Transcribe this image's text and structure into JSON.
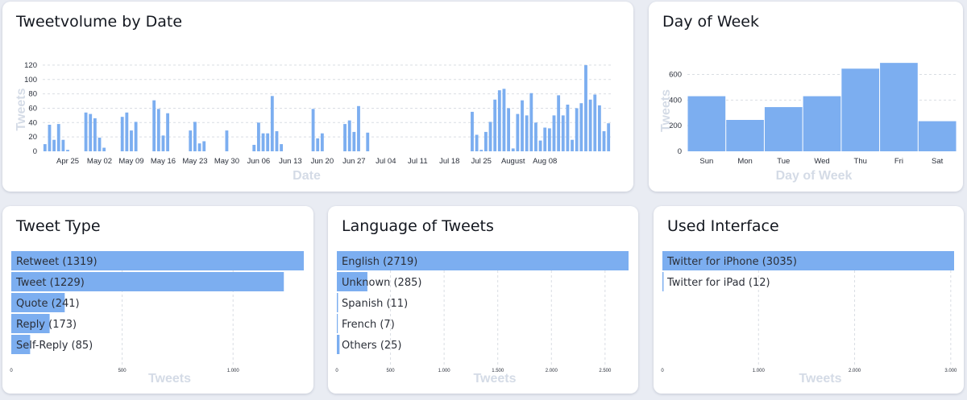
{
  "cards": {
    "date": {
      "title": "Tweetvolume by Date"
    },
    "dow": {
      "title": "Day of Week"
    },
    "type": {
      "title": "Tweet Type"
    },
    "lang": {
      "title": "Language of Tweets"
    },
    "iface": {
      "title": "Used Interface"
    }
  },
  "colors": {
    "bar": "#7caef0",
    "grid": "#d9dde3",
    "axis_title": "#d4dbe6"
  },
  "chart_data": [
    {
      "id": "date",
      "type": "bar",
      "title": "Tweetvolume by Date",
      "xlabel": "Date",
      "ylabel": "Tweets",
      "ylim": [
        0,
        130
      ],
      "yticks": [
        0,
        20,
        40,
        60,
        80,
        100,
        120
      ],
      "grid": true,
      "start": "Apr 20",
      "xtick_labels": [
        {
          "label": "Apr 25",
          "day": 5
        },
        {
          "label": "May 02",
          "day": 12
        },
        {
          "label": "May 09",
          "day": 19
        },
        {
          "label": "May 16",
          "day": 26
        },
        {
          "label": "May 23",
          "day": 33
        },
        {
          "label": "May 30",
          "day": 40
        },
        {
          "label": "Jun 06",
          "day": 47
        },
        {
          "label": "Jun 13",
          "day": 54
        },
        {
          "label": "Jun 20",
          "day": 61
        },
        {
          "label": "Jun 27",
          "day": 68
        },
        {
          "label": "Jul 04",
          "day": 75
        },
        {
          "label": "Jul 11",
          "day": 82
        },
        {
          "label": "Jul 18",
          "day": 89
        },
        {
          "label": "Jul 25",
          "day": 96
        },
        {
          "label": "August",
          "day": 103
        },
        {
          "label": "Aug 08",
          "day": 110
        }
      ],
      "values": [
        10,
        37,
        16,
        38,
        16,
        2,
        0,
        0,
        0,
        54,
        52,
        46,
        19,
        5,
        0,
        0,
        0,
        48,
        54,
        29,
        41,
        0,
        0,
        0,
        71,
        59,
        22,
        53,
        0,
        0,
        0,
        0,
        29,
        41,
        11,
        14,
        0,
        0,
        0,
        0,
        29,
        0,
        0,
        0,
        0,
        0,
        9,
        40,
        25,
        25,
        77,
        28,
        10,
        0,
        0,
        0,
        0,
        0,
        0,
        59,
        18,
        25,
        0,
        0,
        0,
        0,
        38,
        43,
        27,
        63,
        0,
        26,
        0,
        0,
        0,
        0,
        0,
        0,
        0,
        0,
        0,
        0,
        0,
        0,
        0,
        0,
        0,
        0,
        0,
        0,
        0,
        0,
        0,
        0,
        55,
        23,
        2,
        27,
        41,
        72,
        85,
        87,
        60,
        4,
        52,
        71,
        50,
        81,
        40,
        15,
        33,
        32,
        50,
        78,
        50,
        65,
        16,
        60,
        67,
        120,
        72,
        79,
        64,
        28,
        39
      ]
    },
    {
      "id": "dow",
      "type": "bar",
      "title": "Day of Week",
      "xlabel": "Day of Week",
      "ylabel": "Tweets",
      "ylim": [
        0,
        760
      ],
      "yticks": [
        0,
        200,
        400,
        600
      ],
      "grid": true,
      "categories": [
        "Sun",
        "Mon",
        "Tue",
        "Wed",
        "Thu",
        "Fri",
        "Sat"
      ],
      "values": [
        430,
        245,
        345,
        430,
        645,
        690,
        235
      ]
    },
    {
      "id": "type",
      "type": "bar",
      "orientation": "horizontal",
      "title": "Tweet Type",
      "xlabel": "Tweets",
      "xlim": [
        0,
        1319
      ],
      "xticks": [
        0,
        500,
        1000
      ],
      "xtick_labels": [
        "0",
        "500",
        "1.000"
      ],
      "grid": true,
      "categories": [
        "Retweet (1319)",
        "Tweet (1229)",
        "Quote (241)",
        "Reply (173)",
        "Self-Reply (85)"
      ],
      "values": [
        1319,
        1229,
        241,
        173,
        85
      ]
    },
    {
      "id": "lang",
      "type": "bar",
      "orientation": "horizontal",
      "title": "Language of Tweets",
      "xlabel": "Tweets",
      "xlim": [
        0,
        2719
      ],
      "xticks": [
        0,
        500,
        1000,
        1500,
        2000,
        2500
      ],
      "xtick_labels": [
        "0",
        "500",
        "1.000",
        "1.500",
        "2.000",
        "2.500"
      ],
      "grid": true,
      "categories": [
        "English (2719)",
        "Unknown (285)",
        "Spanish (11)",
        "French (7)",
        "Others (25)"
      ],
      "values": [
        2719,
        285,
        11,
        7,
        25
      ]
    },
    {
      "id": "iface",
      "type": "bar",
      "orientation": "horizontal",
      "title": "Used Interface",
      "xlabel": "Tweets",
      "xlim": [
        0,
        3035
      ],
      "xticks": [
        0,
        1000,
        2000,
        3000
      ],
      "xtick_labels": [
        "0",
        "1.000",
        "2.000",
        "3.000"
      ],
      "grid": true,
      "categories": [
        "Twitter for iPhone (3035)",
        "Twitter for iPad (12)"
      ],
      "values": [
        3035,
        12
      ]
    }
  ]
}
